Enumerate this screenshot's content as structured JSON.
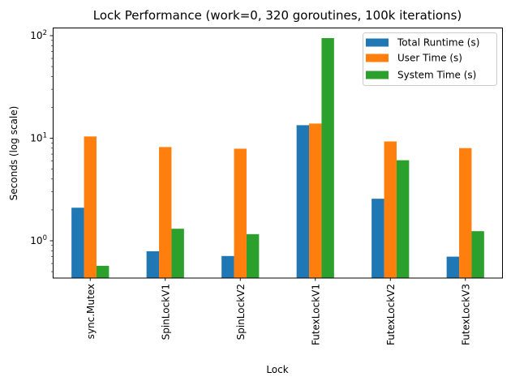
{
  "chart_data": {
    "type": "bar",
    "title": "Lock Performance (work=0, 320 goroutines, 100k iterations)",
    "xlabel": "Lock",
    "ylabel": "Seconds (log scale)",
    "yscale": "log",
    "ylim": [
      0.43,
      120
    ],
    "yticks": [
      {
        "value": 1,
        "label_base": "10",
        "label_exp": "0"
      },
      {
        "value": 10,
        "label_base": "10",
        "label_exp": "1"
      },
      {
        "value": 100,
        "label_base": "10",
        "label_exp": "2"
      }
    ],
    "categories": [
      "sync.Mutex",
      "SpinLockV1",
      "SpinLockV2",
      "FutexLockV1",
      "FutexLockV2",
      "FutexLockV3"
    ],
    "series": [
      {
        "name": "Total Runtime (s)",
        "color": "#1f77b4",
        "values": [
          2.1,
          0.79,
          0.71,
          13.4,
          2.57,
          0.7
        ]
      },
      {
        "name": "User Time (s)",
        "color": "#ff7f0e",
        "values": [
          10.4,
          8.2,
          7.9,
          13.9,
          9.3,
          8.0
        ]
      },
      {
        "name": "System Time (s)",
        "color": "#2ca02c",
        "values": [
          0.57,
          1.31,
          1.16,
          94.7,
          6.1,
          1.24
        ]
      }
    ],
    "grid": false,
    "legend_position": "upper right",
    "x_tick_rotation": 90
  }
}
